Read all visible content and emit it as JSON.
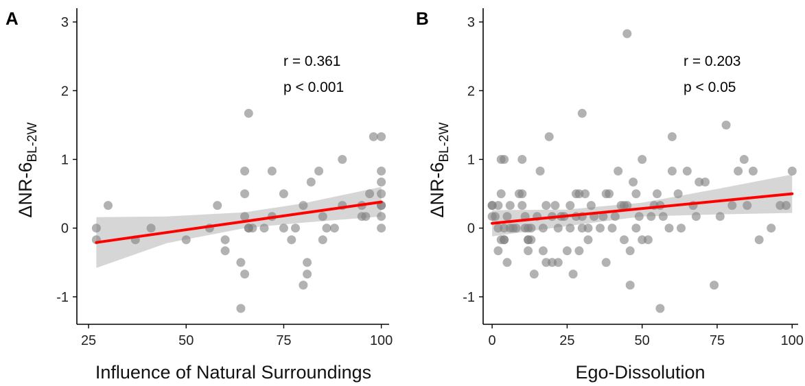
{
  "chart_data": [
    {
      "type": "scatter",
      "panel_label": "A",
      "xlabel": "Influence of Natural Surroundings",
      "ylabel_main": "ΔNR-6",
      "ylabel_sub": "BL-2W",
      "xlim": [
        22,
        102
      ],
      "ylim": [
        -1.4,
        3.2
      ],
      "xticks": [
        25,
        50,
        75,
        100
      ],
      "yticks": [
        -1,
        0,
        1,
        2,
        3
      ],
      "xtick_labels": [
        "25",
        "50",
        "75",
        "100"
      ],
      "ytick_labels": [
        "-1",
        "0",
        "1",
        "2",
        "3"
      ],
      "grid": false,
      "stat_r": "r = 0.361",
      "stat_p": "p < 0.001",
      "point_color": "#7f7f7f",
      "fit_color": "#ff0000",
      "band_color": "#cfcfcf",
      "fit": {
        "x": [
          27,
          100
        ],
        "y": [
          -0.21,
          0.38
        ]
      },
      "ci_band": {
        "x": [
          27,
          45,
          65,
          80,
          100
        ],
        "lower": [
          -0.58,
          -0.22,
          0.0,
          0.08,
          0.17
        ],
        "upper": [
          0.16,
          0.17,
          0.23,
          0.36,
          0.6
        ]
      },
      "points": [
        [
          27,
          0.0
        ],
        [
          27,
          -0.17
        ],
        [
          30,
          0.33
        ],
        [
          37,
          -0.17
        ],
        [
          41,
          0.0
        ],
        [
          50,
          -0.17
        ],
        [
          56,
          0.0
        ],
        [
          58,
          0.33
        ],
        [
          60,
          -0.17
        ],
        [
          60,
          -0.33
        ],
        [
          64,
          -0.5
        ],
        [
          64,
          -1.17
        ],
        [
          65,
          0.5
        ],
        [
          65,
          0.83
        ],
        [
          65,
          0.17
        ],
        [
          65,
          -0.67
        ],
        [
          66,
          0.0
        ],
        [
          66,
          0.0
        ],
        [
          66,
          1.67
        ],
        [
          67,
          0.0
        ],
        [
          70,
          0.0
        ],
        [
          72,
          0.17
        ],
        [
          72,
          0.83
        ],
        [
          75,
          0.0
        ],
        [
          75,
          0.5
        ],
        [
          77,
          -0.17
        ],
        [
          78,
          0.0
        ],
        [
          80,
          0.33
        ],
        [
          80,
          -0.83
        ],
        [
          81,
          -0.5
        ],
        [
          81,
          -0.67
        ],
        [
          82,
          0.67
        ],
        [
          84,
          0.83
        ],
        [
          85,
          -0.17
        ],
        [
          85,
          0.17
        ],
        [
          86,
          0.0
        ],
        [
          88,
          0.0
        ],
        [
          90,
          0.33
        ],
        [
          90,
          1.0
        ],
        [
          95,
          0.17
        ],
        [
          95,
          0.33
        ],
        [
          96,
          0.17
        ],
        [
          97,
          0.5
        ],
        [
          98,
          1.33
        ],
        [
          100,
          1.33
        ],
        [
          100,
          0.83
        ],
        [
          100,
          0.67
        ],
        [
          100,
          0.5
        ],
        [
          100,
          0.33
        ],
        [
          100,
          0.33
        ],
        [
          100,
          0.17
        ],
        [
          100,
          0.0
        ]
      ]
    },
    {
      "type": "scatter",
      "panel_label": "B",
      "xlabel": "Ego-Dissolution",
      "ylabel_main": "ΔNR-6",
      "ylabel_sub": "BL-2W",
      "xlim": [
        -3,
        102
      ],
      "ylim": [
        -1.4,
        3.2
      ],
      "xticks": [
        0,
        25,
        50,
        75,
        100
      ],
      "yticks": [
        -1,
        0,
        1,
        2,
        3
      ],
      "xtick_labels": [
        "0",
        "25",
        "50",
        "75",
        "100"
      ],
      "ytick_labels": [
        "-1",
        "0",
        "1",
        "2",
        "3"
      ],
      "grid": false,
      "stat_r": "r = 0.203",
      "stat_p": "p < 0.05",
      "point_color": "#7f7f7f",
      "fit_color": "#ff0000",
      "band_color": "#cfcfcf",
      "fit": {
        "x": [
          0,
          100
        ],
        "y": [
          0.07,
          0.5
        ]
      },
      "ci_band": {
        "x": [
          0,
          25,
          50,
          75,
          100
        ],
        "lower": [
          -0.12,
          0.03,
          0.17,
          0.2,
          0.22
        ],
        "upper": [
          0.26,
          0.27,
          0.37,
          0.57,
          0.78
        ]
      },
      "points": [
        [
          0,
          0.33
        ],
        [
          0,
          0.33
        ],
        [
          0,
          0.17
        ],
        [
          1,
          0.17
        ],
        [
          2,
          0.0
        ],
        [
          2,
          -0.33
        ],
        [
          2,
          0.33
        ],
        [
          3,
          1.0
        ],
        [
          3,
          -0.17
        ],
        [
          3,
          0.5
        ],
        [
          4,
          -0.17
        ],
        [
          4,
          -0.17
        ],
        [
          4,
          0.0
        ],
        [
          4,
          1.0
        ],
        [
          5,
          -0.5
        ],
        [
          5,
          0.17
        ],
        [
          6,
          0.0
        ],
        [
          6,
          0.33
        ],
        [
          7,
          0.0
        ],
        [
          8,
          0.0
        ],
        [
          9,
          0.5
        ],
        [
          10,
          0.5
        ],
        [
          10,
          1.0
        ],
        [
          10,
          0.33
        ],
        [
          11,
          0.0
        ],
        [
          11,
          0.17
        ],
        [
          12,
          -0.17
        ],
        [
          12,
          -0.17
        ],
        [
          12,
          0.0
        ],
        [
          12,
          -0.33
        ],
        [
          13,
          -0.17
        ],
        [
          13,
          0.0
        ],
        [
          14,
          -0.67
        ],
        [
          15,
          0.17
        ],
        [
          16,
          0.83
        ],
        [
          17,
          -0.33
        ],
        [
          17,
          0.0
        ],
        [
          18,
          -0.5
        ],
        [
          18,
          0.33
        ],
        [
          19,
          1.33
        ],
        [
          20,
          -0.5
        ],
        [
          20,
          0.17
        ],
        [
          21,
          0.33
        ],
        [
          22,
          -0.5
        ],
        [
          22,
          0.0
        ],
        [
          23,
          0.17
        ],
        [
          24,
          0.17
        ],
        [
          25,
          -0.33
        ],
        [
          26,
          0.0
        ],
        [
          26,
          0.33
        ],
        [
          27,
          -0.67
        ],
        [
          28,
          0.17
        ],
        [
          28,
          0.5
        ],
        [
          29,
          0.5
        ],
        [
          29,
          -0.33
        ],
        [
          30,
          0.17
        ],
        [
          30,
          0.0
        ],
        [
          30,
          1.67
        ],
        [
          31,
          0.5
        ],
        [
          32,
          0.0
        ],
        [
          32,
          -0.17
        ],
        [
          33,
          0.33
        ],
        [
          34,
          0.17
        ],
        [
          36,
          0.0
        ],
        [
          37,
          0.17
        ],
        [
          38,
          0.5
        ],
        [
          38,
          -0.5
        ],
        [
          39,
          0.5
        ],
        [
          40,
          0.0
        ],
        [
          41,
          0.17
        ],
        [
          42,
          0.83
        ],
        [
          43,
          0.33
        ],
        [
          44,
          -0.17
        ],
        [
          44,
          0.33
        ],
        [
          45,
          0.33
        ],
        [
          45,
          2.83
        ],
        [
          46,
          -0.33
        ],
        [
          46,
          -0.83
        ],
        [
          47,
          0.67
        ],
        [
          48,
          0.0
        ],
        [
          48,
          0.5
        ],
        [
          49,
          0.17
        ],
        [
          50,
          1.0
        ],
        [
          50,
          -0.17
        ],
        [
          52,
          -0.17
        ],
        [
          53,
          0.17
        ],
        [
          54,
          0.33
        ],
        [
          55,
          0.5
        ],
        [
          56,
          -1.17
        ],
        [
          56,
          0.33
        ],
        [
          57,
          0.17
        ],
        [
          59,
          0.0
        ],
        [
          60,
          1.33
        ],
        [
          60,
          0.83
        ],
        [
          62,
          0.5
        ],
        [
          63,
          0.0
        ],
        [
          65,
          0.83
        ],
        [
          67,
          0.33
        ],
        [
          68,
          0.17
        ],
        [
          69,
          0.67
        ],
        [
          71,
          0.67
        ],
        [
          74,
          -0.83
        ],
        [
          76,
          0.17
        ],
        [
          78,
          1.5
        ],
        [
          80,
          0.33
        ],
        [
          82,
          0.83
        ],
        [
          84,
          1.0
        ],
        [
          85,
          0.33
        ],
        [
          87,
          0.83
        ],
        [
          89,
          -0.17
        ],
        [
          93,
          0.0
        ],
        [
          96,
          0.33
        ],
        [
          98,
          0.33
        ],
        [
          100,
          0.83
        ]
      ]
    }
  ]
}
